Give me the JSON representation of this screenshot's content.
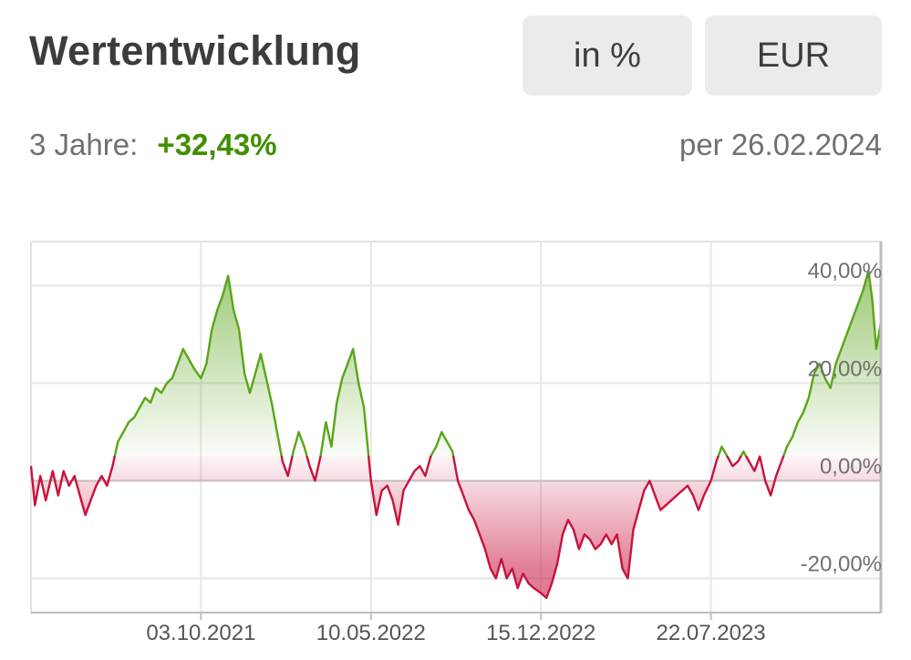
{
  "header": {
    "title": "Wertentwicklung",
    "buttons": {
      "percent": "in %",
      "currency": "EUR"
    }
  },
  "summary": {
    "period_label": "3 Jahre:",
    "performance": "+32,43%",
    "as_of": "per 26.02.2024"
  },
  "colors": {
    "positive": "#5aa51a",
    "negative": "#c8123c",
    "positive_text": "#3f8f00"
  },
  "chart_data": {
    "type": "area",
    "title": "",
    "xlabel": "",
    "ylabel": "",
    "x_start": "26.02.2021",
    "x_end": "26.02.2024",
    "x_ticks": [
      "03.10.2021",
      "10.05.2022",
      "15.12.2022",
      "22.07.2023"
    ],
    "y_ticks": [
      40,
      20,
      0,
      -20
    ],
    "y_tick_labels": [
      "40,00%",
      "20,00%",
      "0,00%",
      "-20,00%"
    ],
    "ylim": [
      -27,
      49
    ],
    "grid": true,
    "baseline": 0,
    "series": [
      {
        "points": [
          [
            "26.02.2021",
            3
          ],
          [
            "03.03.2021",
            -5
          ],
          [
            "10.03.2021",
            1
          ],
          [
            "17.03.2021",
            -4
          ],
          [
            "26.03.2021",
            2
          ],
          [
            "02.04.2021",
            -3
          ],
          [
            "09.04.2021",
            2
          ],
          [
            "16.04.2021",
            -1
          ],
          [
            "23.04.2021",
            1
          ],
          [
            "30.04.2021",
            -3
          ],
          [
            "07.05.2021",
            -7
          ],
          [
            "14.05.2021",
            -4
          ],
          [
            "21.05.2021",
            -1
          ],
          [
            "28.05.2021",
            1
          ],
          [
            "04.06.2021",
            -1
          ],
          [
            "11.06.2021",
            3
          ],
          [
            "18.06.2021",
            8
          ],
          [
            "25.06.2021",
            10
          ],
          [
            "02.07.2021",
            12
          ],
          [
            "09.07.2021",
            13
          ],
          [
            "16.07.2021",
            15
          ],
          [
            "23.07.2021",
            17
          ],
          [
            "30.07.2021",
            16
          ],
          [
            "06.08.2021",
            19
          ],
          [
            "13.08.2021",
            18
          ],
          [
            "20.08.2021",
            20
          ],
          [
            "27.08.2021",
            21
          ],
          [
            "03.09.2021",
            24
          ],
          [
            "10.09.2021",
            27
          ],
          [
            "17.09.2021",
            25
          ],
          [
            "24.09.2021",
            23
          ],
          [
            "03.10.2021",
            21
          ],
          [
            "10.10.2021",
            24
          ],
          [
            "17.10.2021",
            31
          ],
          [
            "24.10.2021",
            35
          ],
          [
            "31.10.2021",
            38
          ],
          [
            "07.11.2021",
            42
          ],
          [
            "14.11.2021",
            35
          ],
          [
            "21.11.2021",
            31
          ],
          [
            "28.11.2021",
            22
          ],
          [
            "05.12.2021",
            18
          ],
          [
            "12.12.2021",
            22
          ],
          [
            "19.12.2021",
            26
          ],
          [
            "26.12.2021",
            21
          ],
          [
            "02.01.2022",
            16
          ],
          [
            "09.01.2022",
            10
          ],
          [
            "16.01.2022",
            4
          ],
          [
            "23.01.2022",
            1
          ],
          [
            "30.01.2022",
            6
          ],
          [
            "06.02.2022",
            10
          ],
          [
            "13.02.2022",
            7
          ],
          [
            "20.02.2022",
            3
          ],
          [
            "27.02.2022",
            0
          ],
          [
            "06.03.2022",
            5
          ],
          [
            "13.03.2022",
            12
          ],
          [
            "20.03.2022",
            7
          ],
          [
            "27.03.2022",
            16
          ],
          [
            "03.04.2022",
            21
          ],
          [
            "10.04.2022",
            24
          ],
          [
            "17.04.2022",
            27
          ],
          [
            "24.04.2022",
            20
          ],
          [
            "01.05.2022",
            15
          ],
          [
            "10.05.2022",
            0
          ],
          [
            "17.05.2022",
            -7
          ],
          [
            "24.05.2022",
            -2
          ],
          [
            "31.05.2022",
            -1
          ],
          [
            "07.06.2022",
            -4
          ],
          [
            "14.06.2022",
            -9
          ],
          [
            "21.06.2022",
            -2
          ],
          [
            "28.06.2022",
            0
          ],
          [
            "05.07.2022",
            2
          ],
          [
            "12.07.2022",
            3
          ],
          [
            "19.07.2022",
            1
          ],
          [
            "26.07.2022",
            5
          ],
          [
            "02.08.2022",
            7
          ],
          [
            "09.08.2022",
            10
          ],
          [
            "16.08.2022",
            8
          ],
          [
            "23.08.2022",
            6
          ],
          [
            "30.08.2022",
            0
          ],
          [
            "06.09.2022",
            -3
          ],
          [
            "13.09.2022",
            -6
          ],
          [
            "20.09.2022",
            -8
          ],
          [
            "27.09.2022",
            -11
          ],
          [
            "04.10.2022",
            -14
          ],
          [
            "11.10.2022",
            -18
          ],
          [
            "18.10.2022",
            -20
          ],
          [
            "25.10.2022",
            -16
          ],
          [
            "01.11.2022",
            -20
          ],
          [
            "08.11.2022",
            -18
          ],
          [
            "15.11.2022",
            -22
          ],
          [
            "22.11.2022",
            -19
          ],
          [
            "29.11.2022",
            -21
          ],
          [
            "06.12.2022",
            -22
          ],
          [
            "15.12.2022",
            -23
          ],
          [
            "22.12.2022",
            -24
          ],
          [
            "29.12.2022",
            -21
          ],
          [
            "05.01.2023",
            -17
          ],
          [
            "12.01.2023",
            -11
          ],
          [
            "19.01.2023",
            -8
          ],
          [
            "26.01.2023",
            -10
          ],
          [
            "02.02.2023",
            -14
          ],
          [
            "09.02.2023",
            -11
          ],
          [
            "16.02.2023",
            -12
          ],
          [
            "23.02.2023",
            -14
          ],
          [
            "02.03.2023",
            -13
          ],
          [
            "09.03.2023",
            -11
          ],
          [
            "16.03.2023",
            -13
          ],
          [
            "23.03.2023",
            -11
          ],
          [
            "30.03.2023",
            -18
          ],
          [
            "06.04.2023",
            -20
          ],
          [
            "13.04.2023",
            -10
          ],
          [
            "20.04.2023",
            -6
          ],
          [
            "27.04.2023",
            -2
          ],
          [
            "04.05.2023",
            0
          ],
          [
            "11.05.2023",
            -3
          ],
          [
            "18.05.2023",
            -6
          ],
          [
            "25.05.2023",
            -5
          ],
          [
            "01.06.2023",
            -4
          ],
          [
            "08.06.2023",
            -3
          ],
          [
            "15.06.2023",
            -2
          ],
          [
            "22.06.2023",
            -1
          ],
          [
            "29.06.2023",
            -3
          ],
          [
            "06.07.2023",
            -6
          ],
          [
            "13.07.2023",
            -3
          ],
          [
            "22.07.2023",
            0
          ],
          [
            "29.07.2023",
            4
          ],
          [
            "05.08.2023",
            7
          ],
          [
            "12.08.2023",
            5
          ],
          [
            "19.08.2023",
            3
          ],
          [
            "26.08.2023",
            4
          ],
          [
            "02.09.2023",
            6
          ],
          [
            "09.09.2023",
            4
          ],
          [
            "16.09.2023",
            2
          ],
          [
            "23.09.2023",
            5
          ],
          [
            "30.09.2023",
            0
          ],
          [
            "07.10.2023",
            -3
          ],
          [
            "14.10.2023",
            1
          ],
          [
            "21.10.2023",
            4
          ],
          [
            "28.10.2023",
            7
          ],
          [
            "04.11.2023",
            9
          ],
          [
            "11.11.2023",
            12
          ],
          [
            "18.11.2023",
            14
          ],
          [
            "25.11.2023",
            17
          ],
          [
            "02.12.2023",
            22
          ],
          [
            "09.12.2023",
            24
          ],
          [
            "16.12.2023",
            21
          ],
          [
            "23.12.2023",
            19
          ],
          [
            "30.12.2023",
            24
          ],
          [
            "06.01.2024",
            27
          ],
          [
            "13.01.2024",
            30
          ],
          [
            "20.01.2024",
            33
          ],
          [
            "27.01.2024",
            36
          ],
          [
            "03.02.2024",
            39
          ],
          [
            "10.02.2024",
            43
          ],
          [
            "15.02.2024",
            37
          ],
          [
            "20.02.2024",
            27
          ],
          [
            "26.02.2024",
            32.43
          ]
        ]
      }
    ]
  }
}
